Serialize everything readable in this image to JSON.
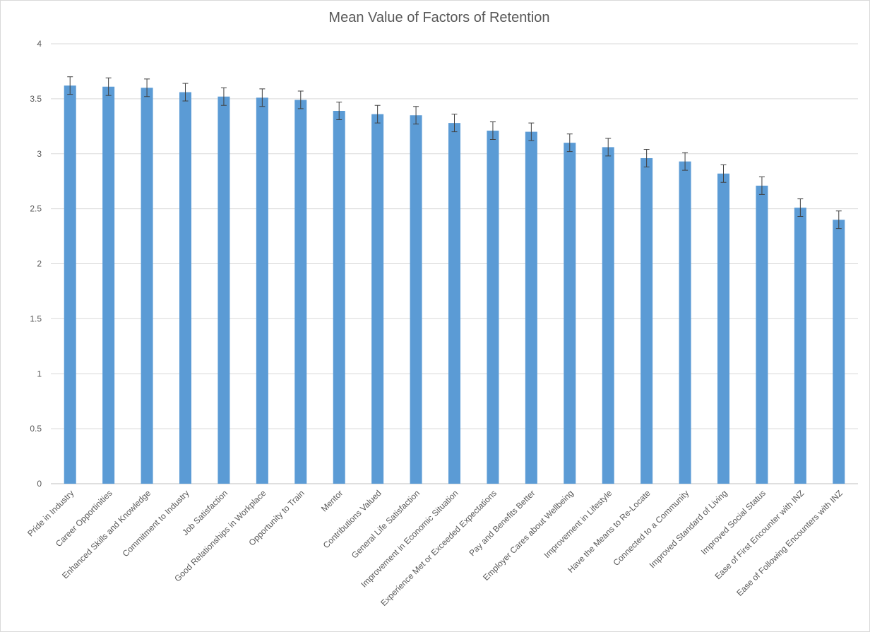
{
  "chart_data": {
    "type": "bar",
    "title": "Mean Value of Factors of Retention",
    "xlabel": "",
    "ylabel": "",
    "ylim": [
      0,
      4
    ],
    "yticks": [
      "0",
      "0.5",
      "1",
      "1.5",
      "2",
      "2.5",
      "3",
      "3.5",
      "4"
    ],
    "grid": true,
    "legend": "none",
    "bar_color": "#5B9BD5",
    "categories": [
      "Pride in Industry",
      "Career Opportinities",
      "Enhanced Skills and Knowledge",
      "Commitment to Industry",
      "Job Satisfaction",
      "Good Relationships in Workplace",
      "Opportunity to Train",
      "Mentor",
      "Contributions Valued",
      "General Life Satisfaction",
      "Improvement in Economic Situation",
      "Experience Met or Exceeded Expectations",
      "Pay and Benefits Better",
      "Employer Cares about Wellbeing",
      "Improvement in Lifestyle",
      "Have the Means to Re-Locate",
      "Connected to a Community",
      "Improved Standard of Living",
      "Improved Social Status",
      "Ease of First Encounter with INZ",
      "Ease of Following Encounters with INZ"
    ],
    "values": [
      3.62,
      3.61,
      3.6,
      3.56,
      3.52,
      3.51,
      3.49,
      3.39,
      3.36,
      3.35,
      3.28,
      3.21,
      3.2,
      3.1,
      3.06,
      2.96,
      2.93,
      2.82,
      2.71,
      2.51,
      2.4
    ],
    "error": [
      0.08,
      0.08,
      0.08,
      0.08,
      0.08,
      0.08,
      0.08,
      0.08,
      0.08,
      0.08,
      0.08,
      0.08,
      0.08,
      0.08,
      0.08,
      0.08,
      0.08,
      0.08,
      0.08,
      0.08,
      0.08
    ]
  }
}
